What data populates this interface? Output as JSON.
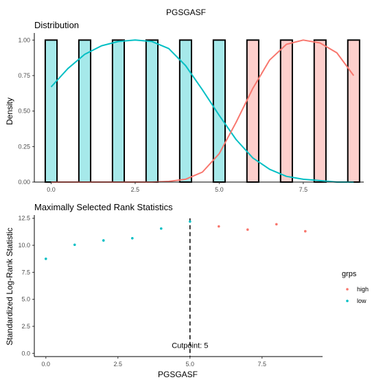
{
  "page": {
    "title": "PGSGASF"
  },
  "chart_data": [
    {
      "type": "bar",
      "title": "Distribution",
      "ylabel": "Density",
      "xlabel": "",
      "xlim": [
        -0.5,
        9.3
      ],
      "ylim": [
        0,
        1.05
      ],
      "x_ticks": [
        0,
        2.5,
        5,
        7.5
      ],
      "x_tick_labels": [
        "0.0",
        "2.5",
        "5.0",
        "7.5"
      ],
      "y_ticks": [
        0,
        0.25,
        0.5,
        0.75,
        1.0
      ],
      "y_tick_labels": [
        "0.00",
        "0.25",
        "0.50",
        "0.75",
        "1.00"
      ],
      "bar_width": 0.35,
      "series": [
        {
          "name": "low",
          "color": "#00BFC4",
          "bars": [
            0,
            1,
            2,
            3,
            4,
            5
          ],
          "values": [
            1,
            1,
            1,
            1,
            1,
            1
          ],
          "density_curve": [
            [
              0,
              0.67
            ],
            [
              0.5,
              0.8
            ],
            [
              1,
              0.9
            ],
            [
              1.5,
              0.96
            ],
            [
              2,
              0.99
            ],
            [
              2.5,
              1.0
            ],
            [
              3,
              0.99
            ],
            [
              3.5,
              0.94
            ],
            [
              4,
              0.82
            ],
            [
              4.5,
              0.65
            ],
            [
              5,
              0.47
            ],
            [
              5.5,
              0.3
            ],
            [
              6,
              0.17
            ],
            [
              6.5,
              0.09
            ],
            [
              7,
              0.04
            ],
            [
              7.5,
              0.02
            ],
            [
              8,
              0.01
            ],
            [
              8.5,
              0.0
            ],
            [
              9,
              0.0
            ]
          ]
        },
        {
          "name": "high",
          "color": "#F8766D",
          "bars": [
            6,
            7,
            8,
            9
          ],
          "values": [
            1,
            1,
            1,
            1
          ],
          "density_curve": [
            [
              0,
              0.0
            ],
            [
              3,
              0.0
            ],
            [
              3.5,
              0.005
            ],
            [
              4,
              0.02
            ],
            [
              4.5,
              0.07
            ],
            [
              5,
              0.2
            ],
            [
              5.5,
              0.42
            ],
            [
              6,
              0.66
            ],
            [
              6.5,
              0.86
            ],
            [
              7,
              0.97
            ],
            [
              7.5,
              1.0
            ],
            [
              8,
              0.98
            ],
            [
              8.5,
              0.91
            ],
            [
              9,
              0.75
            ]
          ]
        }
      ]
    },
    {
      "type": "scatter",
      "title": "Maximally Selected Rank Statistics",
      "xlabel": "PGSGASF",
      "ylabel": "Standardized Log-Rank Statistic",
      "xlim": [
        -0.4,
        9.6
      ],
      "ylim": [
        -0.3,
        12.8
      ],
      "x_ticks": [
        0,
        2.5,
        5,
        7.5
      ],
      "x_tick_labels": [
        "0.0",
        "2.5",
        "5.0",
        "7.5"
      ],
      "y_ticks": [
        0,
        2.5,
        5,
        7.5,
        10,
        12.5
      ],
      "y_tick_labels": [
        "0.0",
        "2.5",
        "5.0",
        "7.5",
        "10.0",
        "12.5"
      ],
      "cutpoint": 5,
      "cutpoint_label": "Cutpoint: 5",
      "legend": {
        "title": "grps",
        "position": "right"
      },
      "series": [
        {
          "name": "low",
          "color": "#00BFC4",
          "x": [
            0,
            1,
            2,
            3,
            4,
            5
          ],
          "y": [
            8.75,
            10.05,
            10.45,
            10.65,
            11.55,
            12.2
          ]
        },
        {
          "name": "high",
          "color": "#F8766D",
          "x": [
            6,
            7,
            8,
            9
          ],
          "y": [
            11.75,
            11.45,
            11.95,
            11.3
          ]
        }
      ]
    }
  ]
}
